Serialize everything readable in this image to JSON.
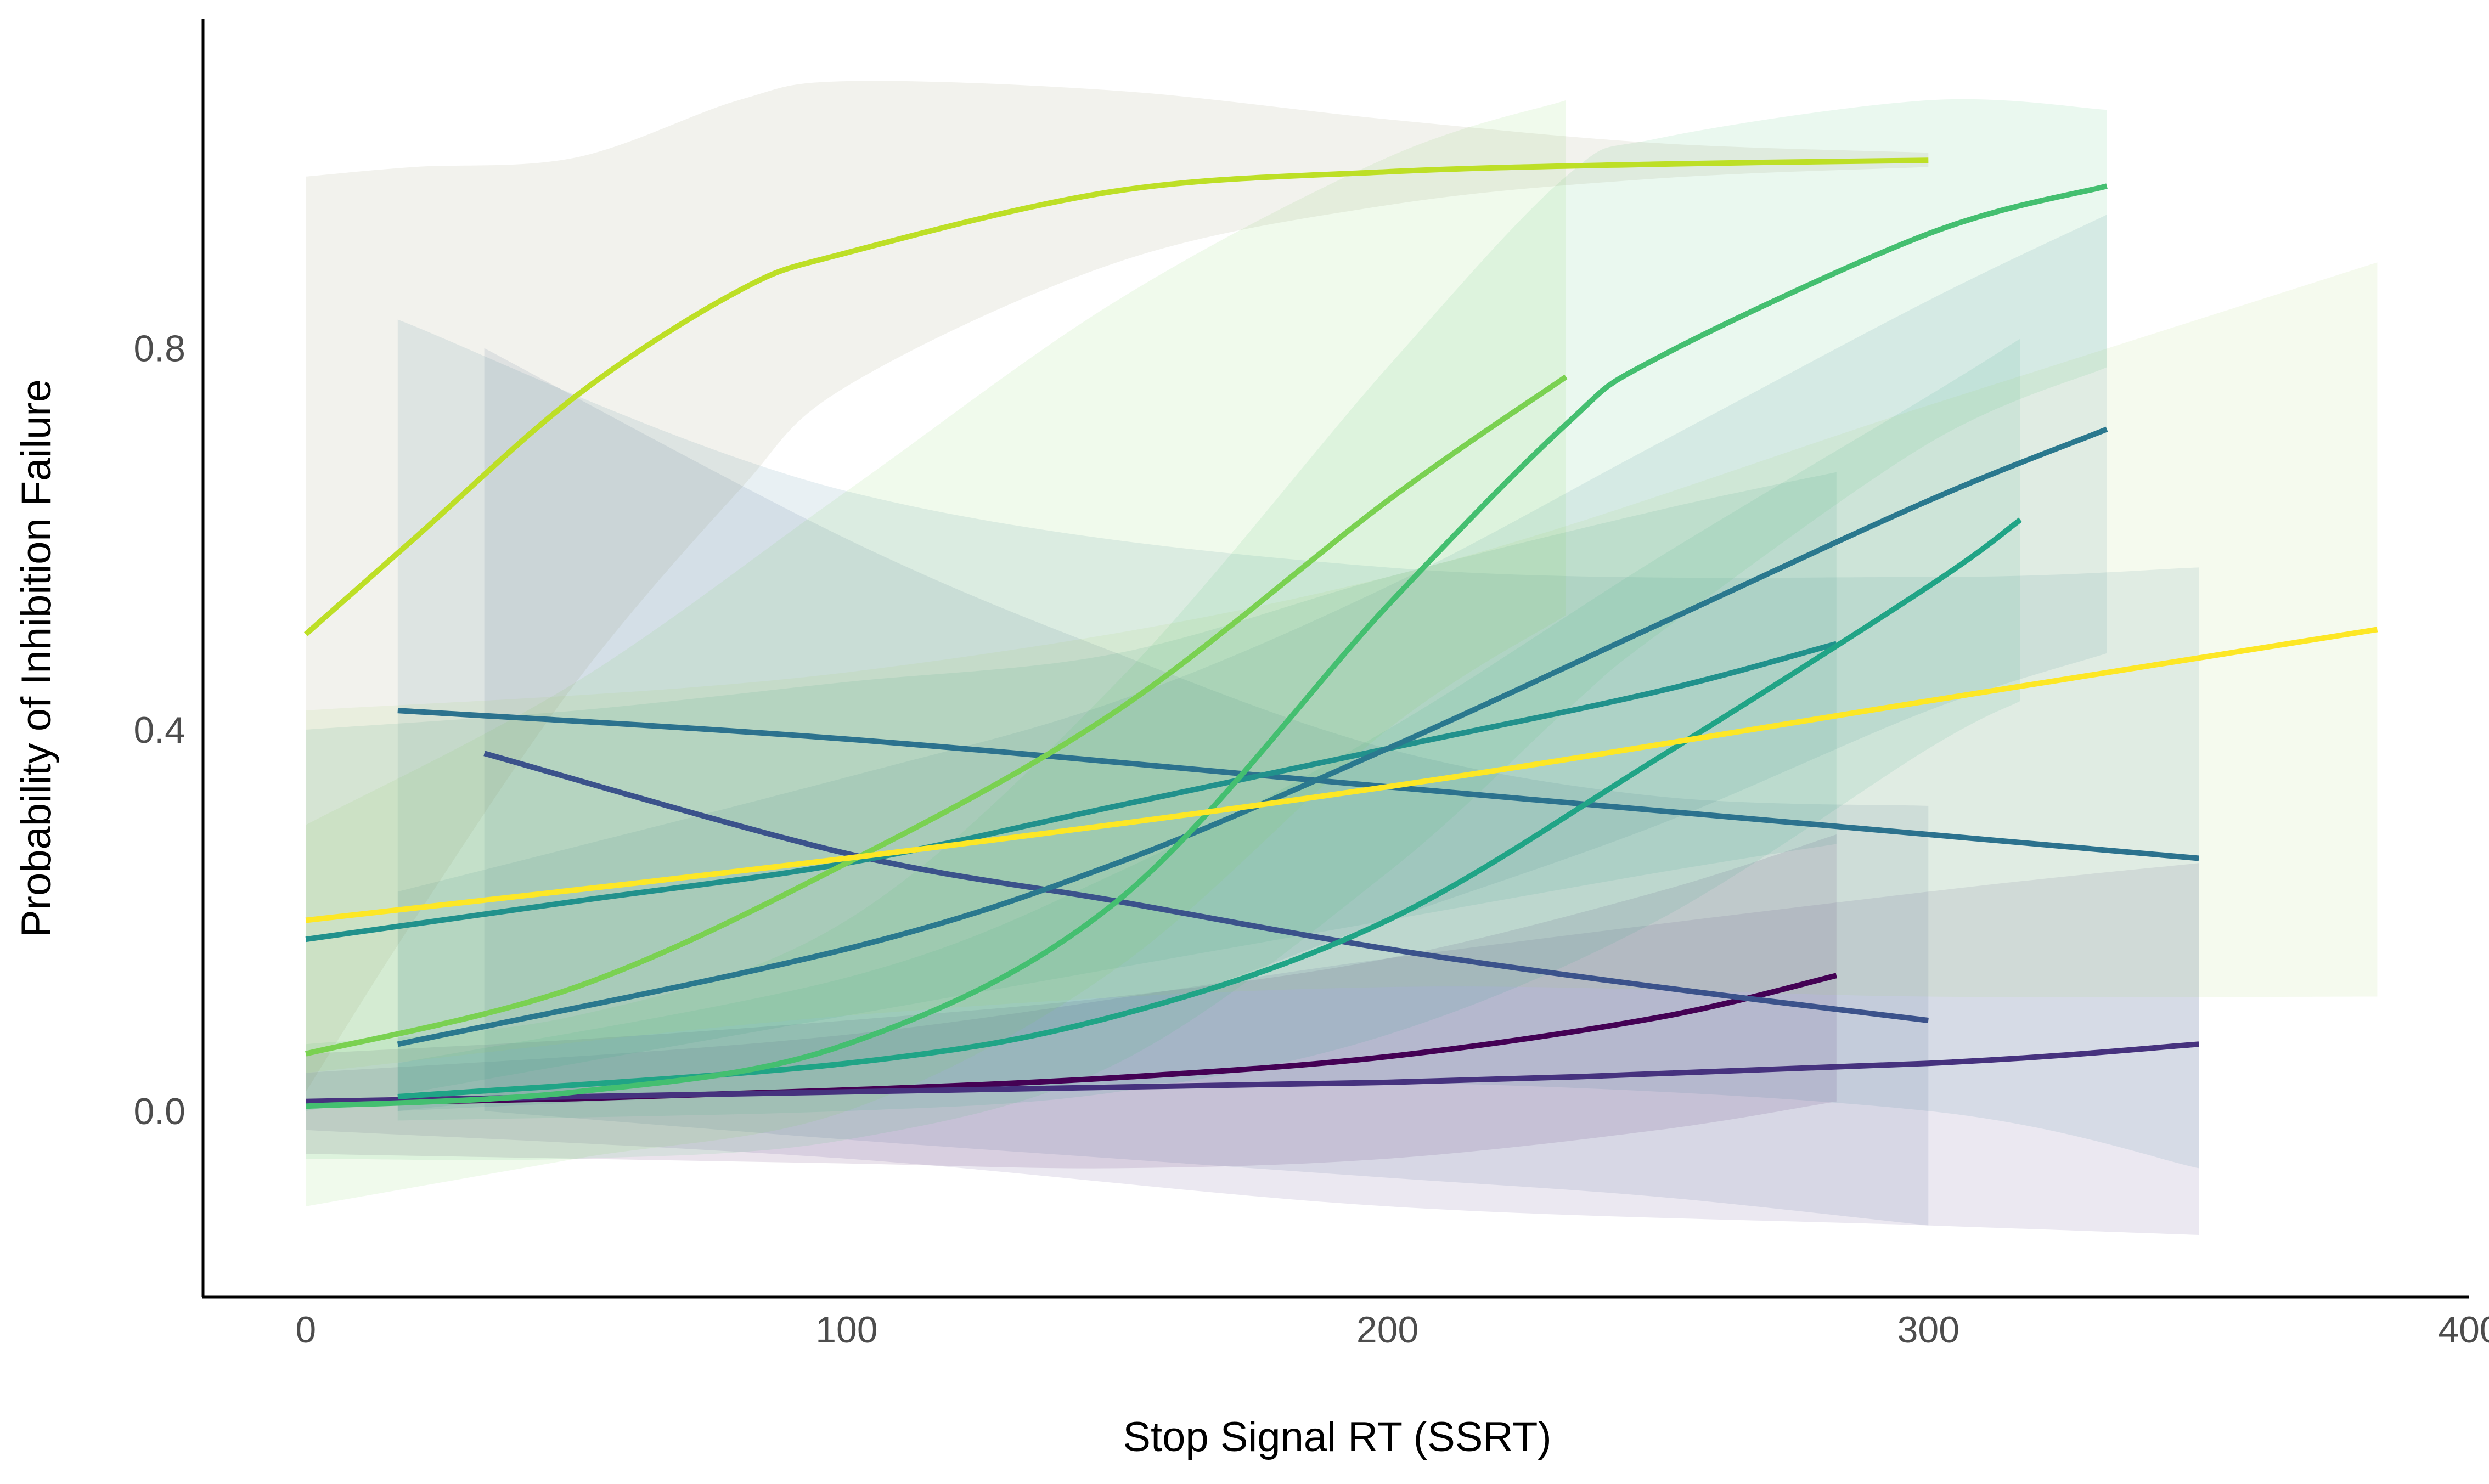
{
  "chart_data": {
    "type": "line",
    "title": "",
    "xlabel": "Stop Signal RT (SSRT)",
    "ylabel": "Probability of Inhibition Failure",
    "xlim": [
      -19,
      400
    ],
    "ylim": [
      -0.195,
      1.145
    ],
    "xticks": [
      0,
      100,
      200,
      300,
      400
    ],
    "yticks": [
      0.0,
      0.4,
      0.8
    ],
    "ytick_labels": [
      "0.0",
      "0.4",
      "0.8"
    ],
    "grid": false,
    "legend": "none",
    "series": [
      {
        "color": "#440154",
        "ribbon_color": "#440154",
        "x": [
          0,
          50,
          100,
          150,
          200,
          250,
          283
        ],
        "y": [
          0.008,
          0.013,
          0.022,
          0.035,
          0.057,
          0.098,
          0.142
        ],
        "lower": [
          -0.045,
          -0.05,
          -0.055,
          -0.06,
          -0.05,
          -0.02,
          0.01
        ],
        "upper": [
          0.06,
          0.075,
          0.095,
          0.12,
          0.16,
          0.23,
          0.29
        ]
      },
      {
        "color": "#46327e",
        "ribbon_color": "#46327e",
        "x": [
          0,
          100,
          200,
          300,
          350
        ],
        "y": [
          0.01,
          0.02,
          0.03,
          0.05,
          0.07
        ],
        "lower": [
          -0.02,
          -0.05,
          -0.1,
          -0.12,
          -0.13
        ],
        "upper": [
          0.04,
          0.08,
          0.16,
          0.23,
          0.26
        ]
      },
      {
        "color": "#3b528b",
        "ribbon_color": "#3b528b",
        "x": [
          33,
          100,
          150,
          200,
          250,
          300
        ],
        "y": [
          0.375,
          0.27,
          0.22,
          0.17,
          0.13,
          0.095
        ],
        "lower": [
          0.0,
          -0.03,
          -0.05,
          -0.07,
          -0.09,
          -0.12
        ],
        "upper": [
          0.8,
          0.6,
          0.48,
          0.38,
          0.33,
          0.32
        ]
      },
      {
        "color": "#2c728e",
        "ribbon_color": "#2c728e",
        "x": [
          17,
          100,
          200,
          300,
          350
        ],
        "y": [
          0.42,
          0.39,
          0.34,
          0.29,
          0.265
        ],
        "lower": [
          0.0,
          0.02,
          0.03,
          0.0,
          -0.06
        ],
        "upper": [
          0.83,
          0.65,
          0.57,
          0.56,
          0.57
        ]
      },
      {
        "color": "#21918c",
        "ribbon_color": "#21918c",
        "x": [
          0,
          50,
          100,
          150,
          200,
          250,
          283
        ],
        "y": [
          0.18,
          0.22,
          0.26,
          0.32,
          0.38,
          0.44,
          0.49
        ],
        "lower": [
          0.0,
          0.05,
          0.1,
          0.15,
          0.2,
          0.25,
          0.28
        ],
        "upper": [
          0.4,
          0.42,
          0.45,
          0.48,
          0.56,
          0.63,
          0.67
        ]
      },
      {
        "color": "#2a788e",
        "ribbon_color": "#2a788e",
        "x": [
          17,
          100,
          150,
          200,
          250,
          300,
          333
        ],
        "y": [
          0.07,
          0.17,
          0.26,
          0.38,
          0.51,
          0.64,
          0.715
        ],
        "lower": [
          0.0,
          0.05,
          0.1,
          0.2,
          0.3,
          0.42,
          0.48
        ],
        "upper": [
          0.23,
          0.35,
          0.43,
          0.55,
          0.7,
          0.85,
          0.94
        ]
      },
      {
        "color": "#20a486",
        "ribbon_color": "#20a486",
        "x": [
          17,
          100,
          150,
          200,
          250,
          300,
          317
        ],
        "y": [
          0.015,
          0.05,
          0.1,
          0.2,
          0.37,
          0.55,
          0.62
        ],
        "lower": [
          -0.01,
          0.0,
          0.02,
          0.08,
          0.2,
          0.38,
          0.43
        ],
        "upper": [
          0.05,
          0.14,
          0.25,
          0.4,
          0.58,
          0.75,
          0.81
        ]
      },
      {
        "color": "#44bf70",
        "ribbon_color": "#44bf70",
        "x": [
          0,
          50,
          100,
          150,
          200,
          233,
          250,
          300,
          333
        ],
        "y": [
          0.005,
          0.02,
          0.07,
          0.22,
          0.53,
          0.72,
          0.79,
          0.92,
          0.97
        ],
        "lower": [
          -0.05,
          -0.05,
          -0.03,
          0.05,
          0.25,
          0.42,
          0.5,
          0.7,
          0.78
        ],
        "upper": [
          0.07,
          0.1,
          0.2,
          0.45,
          0.78,
          0.98,
          1.02,
          1.06,
          1.05
        ]
      },
      {
        "color": "#7ad151",
        "ribbon_color": "#7ad151",
        "x": [
          0,
          50,
          100,
          150,
          200,
          233
        ],
        "y": [
          0.06,
          0.13,
          0.26,
          0.42,
          0.64,
          0.77
        ],
        "lower": [
          -0.1,
          -0.05,
          0.0,
          0.15,
          0.4,
          0.52
        ],
        "upper": [
          0.3,
          0.45,
          0.65,
          0.85,
          1.0,
          1.06
        ]
      },
      {
        "color": "#bddf26",
        "ribbon_color": "#8c8c5a",
        "x": [
          0,
          20,
          50,
          80,
          100,
          150,
          200,
          250,
          300
        ],
        "y": [
          0.5,
          0.6,
          0.75,
          0.86,
          0.9,
          0.965,
          0.985,
          0.993,
          0.997
        ],
        "lower": [
          0.02,
          0.2,
          0.45,
          0.65,
          0.76,
          0.89,
          0.95,
          0.978,
          0.99
        ],
        "upper": [
          0.98,
          0.99,
          1.0,
          1.06,
          1.08,
          1.07,
          1.04,
          1.015,
          1.005
        ]
      },
      {
        "color": "#fde725",
        "ribbon_color": "#a8d260",
        "x": [
          0,
          100,
          200,
          300,
          383
        ],
        "y": [
          0.2,
          0.265,
          0.34,
          0.43,
          0.505
        ],
        "lower": [
          0.04,
          0.1,
          0.13,
          0.12,
          0.12
        ],
        "upper": [
          0.42,
          0.46,
          0.56,
          0.74,
          0.89
        ]
      }
    ]
  }
}
